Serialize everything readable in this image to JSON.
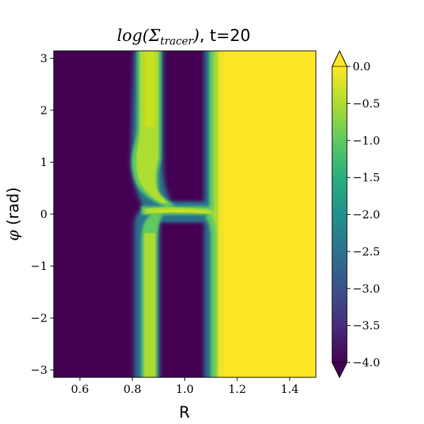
{
  "chart_data": {
    "type": "heatmap",
    "title": {
      "math": "log(Σ",
      "math_sub": "tracer",
      "math_close": ")",
      "suffix": ", t=20"
    },
    "xlabel": "R",
    "ylabel": {
      "symbol": "φ",
      "unit": " (rad)"
    },
    "xlim": [
      0.5,
      1.5
    ],
    "ylim": [
      -3.1416,
      3.1416
    ],
    "x_ticks": [
      0.6,
      0.8,
      1.0,
      1.2,
      1.4
    ],
    "x_tick_labels": [
      "0.6",
      "0.8",
      "1.0",
      "1.2",
      "1.4"
    ],
    "y_ticks": [
      -3,
      -2,
      -1,
      0,
      1,
      2,
      3
    ],
    "y_tick_labels": [
      "−3",
      "−2",
      "−1",
      "0",
      "1",
      "2",
      "3"
    ],
    "colorbar": {
      "colormap": "viridis",
      "range": [
        -4.0,
        0.0
      ],
      "extend": "both",
      "ticks": [
        0.0,
        -0.5,
        -1.0,
        -1.5,
        -2.0,
        -2.5,
        -3.0,
        -3.5,
        -4.0
      ],
      "tick_labels": [
        "0.0",
        "−0.5",
        "−1.0",
        "−1.5",
        "−2.0",
        "−2.5",
        "−3.0",
        "−3.5",
        "−4.0"
      ]
    },
    "field_description": {
      "background_value": -4.0,
      "outer_value": 0.0,
      "outer_edge_R": 1.12,
      "inner_strip_R": [
        0.83,
        0.9
      ],
      "inner_strip_value": -0.3,
      "bridge_phi": 0.05
    }
  }
}
